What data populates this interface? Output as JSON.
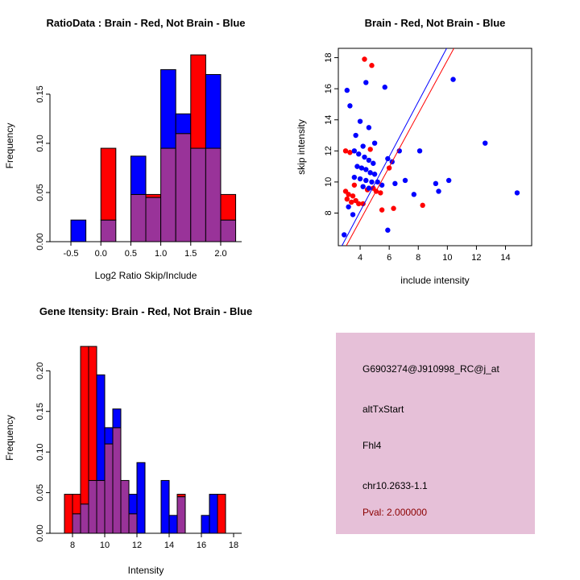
{
  "figure": {
    "background": "#FFFFFF"
  },
  "chart_data": [
    {
      "id": "ratio_hist",
      "type": "bar",
      "title": "RatioData : Brain - Red, Not Brain - Blue",
      "xlabel": "Log2 Ratio Skip/Include",
      "ylabel": "Frequency",
      "xlim": [
        -0.85,
        2.35
      ],
      "ylim": [
        0,
        0.195
      ],
      "x_ticks": [
        -0.5,
        0.0,
        0.5,
        1.0,
        1.5,
        2.0
      ],
      "x_tick_labels": [
        "-0.5",
        "0.0",
        "0.5",
        "1.0",
        "1.5",
        "2.0"
      ],
      "y_ticks": [
        0,
        0.05,
        0.1,
        0.15
      ],
      "y_tick_labels": [
        "0.00",
        "0.05",
        "0.10",
        "0.15"
      ],
      "bin_width": 0.25,
      "bins_note": "each bin is [left_edge, brain_red_freq, notbrain_blue_freq]",
      "bins": [
        [
          -0.5,
          0,
          0.022
        ],
        [
          0.0,
          0.095,
          0.022
        ],
        [
          0.5,
          0.048,
          0.087
        ],
        [
          0.75,
          0.048,
          0.045
        ],
        [
          1.0,
          0.095,
          0.175
        ],
        [
          1.25,
          0.11,
          0.13
        ],
        [
          1.5,
          0.19,
          0.095
        ],
        [
          1.75,
          0.095,
          0.17
        ],
        [
          2.0,
          0.048,
          0.022
        ]
      ],
      "series": [
        {
          "name": "Brain",
          "color": "#FF0000"
        },
        {
          "name": "Not Brain",
          "color": "#0000FF"
        }
      ],
      "overlap_color": "#993399",
      "grid": false,
      "legend": "none"
    },
    {
      "id": "scatter",
      "type": "scatter",
      "title": "Brain - Red, Not Brain - Blue",
      "xlabel": "include intensity",
      "ylabel": "skip intensity",
      "xlim": [
        2.5,
        15.8
      ],
      "ylim": [
        5.9,
        18.6
      ],
      "x_ticks": [
        4,
        6,
        8,
        10,
        12,
        14
      ],
      "x_tick_labels": [
        "4",
        "6",
        "8",
        "10",
        "12",
        "14"
      ],
      "y_ticks": [
        8,
        10,
        12,
        14,
        16,
        18
      ],
      "y_tick_labels": [
        "8",
        "10",
        "12",
        "14",
        "16",
        "18"
      ],
      "series": [
        {
          "name": "Brain",
          "color": "#FF0000",
          "points": [
            [
              3.0,
              12.0
            ],
            [
              3.3,
              11.9
            ],
            [
              4.7,
              12.1
            ],
            [
              4.3,
              17.9
            ],
            [
              4.8,
              17.5
            ],
            [
              3.0,
              9.4
            ],
            [
              3.2,
              9.2
            ],
            [
              3.5,
              9.1
            ],
            [
              3.1,
              8.9
            ],
            [
              3.4,
              8.7
            ],
            [
              3.7,
              8.8
            ],
            [
              3.9,
              8.6
            ],
            [
              4.2,
              8.6
            ],
            [
              4.5,
              9.5
            ],
            [
              4.9,
              9.6
            ],
            [
              5.1,
              9.4
            ],
            [
              5.4,
              9.3
            ],
            [
              3.6,
              9.8
            ],
            [
              6.0,
              10.9
            ],
            [
              8.3,
              8.5
            ],
            [
              6.3,
              8.3
            ],
            [
              5.5,
              8.2
            ]
          ]
        },
        {
          "name": "Not Brain",
          "color": "#0000FF",
          "points": [
            [
              3.1,
              15.9
            ],
            [
              4.4,
              16.4
            ],
            [
              5.7,
              16.1
            ],
            [
              3.3,
              14.9
            ],
            [
              4.0,
              13.9
            ],
            [
              4.6,
              13.5
            ],
            [
              3.7,
              13.0
            ],
            [
              5.0,
              12.5
            ],
            [
              4.2,
              12.3
            ],
            [
              3.6,
              12.0
            ],
            [
              3.9,
              11.8
            ],
            [
              4.3,
              11.6
            ],
            [
              4.6,
              11.4
            ],
            [
              4.9,
              11.2
            ],
            [
              3.8,
              11.0
            ],
            [
              4.1,
              10.9
            ],
            [
              4.4,
              10.8
            ],
            [
              4.7,
              10.6
            ],
            [
              5.0,
              10.5
            ],
            [
              3.6,
              10.3
            ],
            [
              4.0,
              10.2
            ],
            [
              4.4,
              10.1
            ],
            [
              4.8,
              10.0
            ],
            [
              5.2,
              10.0
            ],
            [
              5.5,
              9.8
            ],
            [
              4.2,
              9.7
            ],
            [
              4.6,
              9.6
            ],
            [
              5.9,
              11.5
            ],
            [
              6.2,
              11.3
            ],
            [
              6.7,
              12.0
            ],
            [
              6.4,
              9.9
            ],
            [
              7.1,
              10.1
            ],
            [
              8.1,
              12.0
            ],
            [
              9.2,
              9.9
            ],
            [
              9.4,
              9.4
            ],
            [
              10.1,
              10.1
            ],
            [
              10.4,
              16.6
            ],
            [
              12.6,
              12.5
            ],
            [
              14.8,
              9.3
            ],
            [
              7.7,
              9.2
            ],
            [
              3.2,
              8.4
            ],
            [
              3.5,
              7.9
            ],
            [
              5.9,
              6.9
            ],
            [
              2.9,
              6.6
            ]
          ]
        }
      ],
      "lines": [
        {
          "name": "not-brain-fit",
          "color": "#0000FF",
          "from": [
            2.75,
            5.9
          ],
          "to": [
            9.95,
            18.6
          ]
        },
        {
          "name": "brain-fit",
          "color": "#FF0000",
          "from": [
            3.05,
            5.9
          ],
          "to": [
            10.45,
            18.6
          ]
        }
      ],
      "grid": false,
      "legend": "none"
    },
    {
      "id": "gene_hist",
      "type": "bar",
      "title": "Gene Itensity: Brain - Red, Not Brain - Blue",
      "xlabel": "Intensity",
      "ylabel": "Frequency",
      "xlim": [
        6.6,
        18.5
      ],
      "ylim": [
        0,
        0.235
      ],
      "x_ticks": [
        8,
        10,
        12,
        14,
        16,
        18
      ],
      "x_tick_labels": [
        "8",
        "10",
        "12",
        "14",
        "16",
        "18"
      ],
      "y_ticks": [
        0,
        0.05,
        0.1,
        0.15,
        0.2
      ],
      "y_tick_labels": [
        "0.00",
        "0.05",
        "0.10",
        "0.15",
        "0.20"
      ],
      "bin_width": 0.5,
      "bins_note": "each bin is [left_edge, brain_red_freq, notbrain_blue_freq]",
      "bins": [
        [
          7.5,
          0.048,
          0
        ],
        [
          8.0,
          0.048,
          0.024
        ],
        [
          8.5,
          0.23,
          0.036
        ],
        [
          9.0,
          0.23,
          0.065
        ],
        [
          9.5,
          0.065,
          0.195
        ],
        [
          10.0,
          0.11,
          0.13
        ],
        [
          10.5,
          0.13,
          0.153
        ],
        [
          11.0,
          0.065,
          0.065
        ],
        [
          11.5,
          0.024,
          0.048
        ],
        [
          12.0,
          0,
          0.087
        ],
        [
          13.5,
          0,
          0.065
        ],
        [
          14.0,
          0,
          0.022
        ],
        [
          14.5,
          0.048,
          0.045
        ],
        [
          16.0,
          0,
          0.022
        ],
        [
          16.5,
          0,
          0.048
        ],
        [
          17.0,
          0.048,
          0
        ]
      ],
      "series": [
        {
          "name": "Brain",
          "color": "#FF0000"
        },
        {
          "name": "Not Brain",
          "color": "#0000FF"
        }
      ],
      "overlap_color": "#993399",
      "grid": false,
      "legend": "none"
    }
  ],
  "info_panel": {
    "bg_color": "#E6C0D8",
    "text_color": "#000000",
    "pval_color": "#8B0000",
    "probe_id": "G6903274@J910998_RC@j_at",
    "event_type": "altTxStart",
    "gene": "Fhl4",
    "locus": "chr10.2633-1.1",
    "pval": "Pval: 2.000000"
  }
}
